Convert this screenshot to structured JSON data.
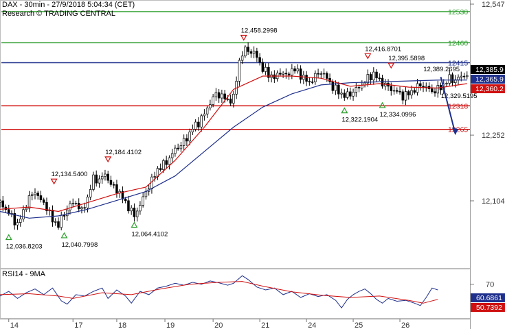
{
  "header": {
    "title": "DAX - 30min - 27/9/2018 5:04:34 (CET)",
    "credit": "Research © TRADING CENTRAL"
  },
  "rsi_panel": {
    "title": "RSI14 - 9MA"
  },
  "chart_data": [
    {
      "type": "candlestick",
      "title": "DAX - 30min - 27/9/2018 5:04:34 (CET)",
      "x_tick_labels": [
        "14",
        "17",
        "18",
        "19",
        "20",
        "21",
        "24",
        "25",
        "26"
      ],
      "y_tick_labels": [
        "12,547",
        "12,252",
        "12,104"
      ],
      "ylim": [
        11950,
        12550
      ],
      "grid": false,
      "price_path": [
        [
          0,
          12100
        ],
        [
          4,
          12085
        ],
        [
          8,
          12068
        ],
        [
          12,
          12050
        ],
        [
          16,
          12080
        ],
        [
          20,
          12110
        ],
        [
          24,
          12125
        ],
        [
          28,
          12105
        ],
        [
          32,
          12090
        ],
        [
          36,
          12060
        ],
        [
          40,
          12050
        ],
        [
          44,
          12075
        ],
        [
          48,
          12095
        ],
        [
          52,
          12100
        ],
        [
          56,
          12080
        ],
        [
          60,
          12110
        ],
        [
          64,
          12155
        ],
        [
          68,
          12150
        ],
        [
          72,
          12165
        ],
        [
          76,
          12140
        ],
        [
          80,
          12130
        ],
        [
          84,
          12110
        ],
        [
          88,
          12090
        ],
        [
          92,
          12070
        ],
        [
          96,
          12095
        ],
        [
          100,
          12125
        ],
        [
          104,
          12150
        ],
        [
          108,
          12175
        ],
        [
          112,
          12185
        ],
        [
          116,
          12200
        ],
        [
          120,
          12220
        ],
        [
          124,
          12230
        ],
        [
          128,
          12245
        ],
        [
          132,
          12268
        ],
        [
          136,
          12280
        ],
        [
          140,
          12300
        ],
        [
          144,
          12325
        ],
        [
          148,
          12345
        ],
        [
          152,
          12340
        ],
        [
          156,
          12330
        ],
        [
          160,
          12335
        ],
        [
          164,
          12420
        ],
        [
          168,
          12445
        ],
        [
          172,
          12440
        ],
        [
          176,
          12430
        ],
        [
          180,
          12400
        ],
        [
          184,
          12390
        ],
        [
          188,
          12380
        ],
        [
          192,
          12395
        ],
        [
          196,
          12385
        ],
        [
          200,
          12400
        ],
        [
          204,
          12395
        ],
        [
          208,
          12380
        ],
        [
          212,
          12370
        ],
        [
          216,
          12385
        ],
        [
          220,
          12395
        ],
        [
          224,
          12380
        ],
        [
          228,
          12360
        ],
        [
          232,
          12350
        ],
        [
          236,
          12340
        ],
        [
          240,
          12345
        ],
        [
          244,
          12355
        ],
        [
          248,
          12365
        ],
        [
          252,
          12380
        ],
        [
          256,
          12390
        ],
        [
          260,
          12375
        ],
        [
          264,
          12365
        ],
        [
          268,
          12355
        ],
        [
          272,
          12350
        ],
        [
          276,
          12340
        ],
        [
          280,
          12345
        ],
        [
          284,
          12355
        ],
        [
          288,
          12365
        ],
        [
          292,
          12360
        ],
        [
          296,
          12350
        ],
        [
          300,
          12355
        ],
        [
          304,
          12365
        ],
        [
          308,
          12380
        ],
        [
          312,
          12375
        ],
        [
          316,
          12385
        ],
        [
          320,
          12387
        ]
      ],
      "series": [
        {
          "name": "",
          "color": "#1e2f8c",
          "values": [
            [
              0,
              12080
            ],
            [
              20,
              12065
            ],
            [
              40,
              12070
            ],
            [
              60,
              12085
            ],
            [
              80,
              12105
            ],
            [
              100,
              12125
            ],
            [
              120,
              12160
            ],
            [
              140,
              12215
            ],
            [
              160,
              12270
            ],
            [
              180,
              12315
            ],
            [
              200,
              12345
            ],
            [
              220,
              12365
            ],
            [
              240,
              12370
            ],
            [
              260,
              12372
            ],
            [
              280,
              12374
            ],
            [
              300,
              12376
            ],
            [
              320,
              12376
            ]
          ]
        },
        {
          "name": "",
          "color": "#d01010",
          "values": [
            [
              0,
              12085
            ],
            [
              20,
              12090
            ],
            [
              40,
              12080
            ],
            [
              60,
              12100
            ],
            [
              80,
              12120
            ],
            [
              100,
              12135
            ],
            [
              120,
              12195
            ],
            [
              140,
              12270
            ],
            [
              160,
              12355
            ],
            [
              180,
              12385
            ],
            [
              200,
              12385
            ],
            [
              220,
              12380
            ],
            [
              240,
              12362
            ],
            [
              260,
              12368
            ],
            [
              280,
              12360
            ],
            [
              300,
              12358
            ],
            [
              320,
              12368
            ]
          ]
        }
      ],
      "levels": [
        {
          "label": "12530",
          "value": 12530,
          "color": "#2e9e2e"
        },
        {
          "label": "12460",
          "value": 12460,
          "color": "#2e9e2e"
        },
        {
          "label": "12415",
          "value": 12415,
          "color": "#1e2f8c"
        },
        {
          "label": "12318",
          "value": 12318,
          "color": "#d01010"
        },
        {
          "label": "12265",
          "value": 12265,
          "color": "#d01010"
        }
      ],
      "price_tags": [
        {
          "label": "12,385.9",
          "value": 12385.9,
          "bg": "#000000",
          "fg": "#ffffff"
        },
        {
          "label": "12,365.9",
          "value": 12365.9,
          "bg": "#1e2f8c",
          "fg": "#ffffff"
        },
        {
          "label": "12,360.2",
          "value": 12360.2,
          "bg": "#d01010",
          "fg": "#ffffff"
        }
      ],
      "annotations": [
        {
          "label": "12,458.2998",
          "x": 167,
          "value": 12458.2998,
          "kind": "high"
        },
        {
          "label": "12,416.8701",
          "x": 252,
          "value": 12416.8701,
          "kind": "high"
        },
        {
          "label": "12,395.5898",
          "x": 268,
          "value": 12395.5898,
          "kind": "high"
        },
        {
          "label": "12,389.2695",
          "x": 292,
          "value": 12389.2695,
          "kind": "label"
        },
        {
          "label": "12,184.4102",
          "x": 74,
          "value": 12184.4102,
          "kind": "high"
        },
        {
          "label": "12,134.5400",
          "x": 37,
          "value": 12134.54,
          "kind": "high"
        },
        {
          "label": "12,036.8203",
          "x": 6,
          "value": 12036.8203,
          "kind": "low"
        },
        {
          "label": "12,040.7998",
          "x": 44,
          "value": 12040.7998,
          "kind": "low"
        },
        {
          "label": "12,064.4102",
          "x": 92,
          "value": 12064.4102,
          "kind": "low"
        },
        {
          "label": "12,322.1904",
          "x": 236,
          "value": 12322.1904,
          "kind": "low"
        },
        {
          "label": "12,334.0996",
          "x": 262,
          "value": 12334.0996,
          "kind": "low"
        },
        {
          "label": "12,329.5195",
          "x": 304,
          "value": 12329.5195,
          "kind": "label"
        }
      ],
      "forecast_arrow": {
        "from": [
          302,
          12383
        ],
        "to": [
          312,
          12255
        ],
        "color": "#1e2f8c"
      }
    },
    {
      "type": "line",
      "title": "RSI14 - 9MA",
      "ylim": [
        0,
        100
      ],
      "y_tick_labels": [
        "70"
      ],
      "series": [
        {
          "name": "",
          "color": "#1e2f8c",
          "values": [
            [
              0,
              45
            ],
            [
              6,
              55
            ],
            [
              12,
              40
            ],
            [
              18,
              52
            ],
            [
              24,
              60
            ],
            [
              30,
              48
            ],
            [
              36,
              62
            ],
            [
              42,
              35
            ],
            [
              46,
              28
            ],
            [
              52,
              48
            ],
            [
              58,
              45
            ],
            [
              64,
              55
            ],
            [
              70,
              62
            ],
            [
              74,
              40
            ],
            [
              80,
              58
            ],
            [
              86,
              45
            ],
            [
              90,
              30
            ],
            [
              96,
              55
            ],
            [
              102,
              48
            ],
            [
              108,
              62
            ],
            [
              114,
              66
            ],
            [
              120,
              72
            ],
            [
              126,
              68
            ],
            [
              132,
              74
            ],
            [
              138,
              70
            ],
            [
              144,
              77
            ],
            [
              150,
              73
            ],
            [
              156,
              68
            ],
            [
              160,
              72
            ],
            [
              166,
              88
            ],
            [
              170,
              80
            ],
            [
              176,
              64
            ],
            [
              182,
              58
            ],
            [
              188,
              62
            ],
            [
              194,
              48
            ],
            [
              200,
              55
            ],
            [
              206,
              42
            ],
            [
              212,
              50
            ],
            [
              218,
              44
            ],
            [
              224,
              48
            ],
            [
              230,
              36
            ],
            [
              234,
              20
            ],
            [
              238,
              38
            ],
            [
              242,
              48
            ],
            [
              246,
              55
            ],
            [
              250,
              60
            ],
            [
              254,
              50
            ],
            [
              258,
              38
            ],
            [
              262,
              30
            ],
            [
              266,
              40
            ],
            [
              272,
              34
            ],
            [
              278,
              36
            ],
            [
              284,
              30
            ],
            [
              288,
              25
            ],
            [
              292,
              42
            ],
            [
              296,
              62
            ],
            [
              300,
              58
            ]
          ]
        },
        {
          "name": "",
          "color": "#d01010",
          "values": [
            [
              0,
              48
            ],
            [
              20,
              50
            ],
            [
              40,
              45
            ],
            [
              50,
              40
            ],
            [
              70,
              52
            ],
            [
              90,
              48
            ],
            [
              110,
              60
            ],
            [
              130,
              70
            ],
            [
              150,
              74
            ],
            [
              166,
              76
            ],
            [
              180,
              66
            ],
            [
              200,
              54
            ],
            [
              220,
              47
            ],
            [
              240,
              42
            ],
            [
              260,
              45
            ],
            [
              280,
              36
            ],
            [
              290,
              30
            ],
            [
              300,
              38
            ]
          ]
        }
      ],
      "value_tags": [
        {
          "label": "60.6861",
          "value": 60.6861,
          "bg": "#1e2f8c",
          "fg": "#ffffff"
        },
        {
          "label": "50.7392",
          "value": 50.7392,
          "bg": "#d01010",
          "fg": "#ffffff"
        }
      ]
    }
  ]
}
